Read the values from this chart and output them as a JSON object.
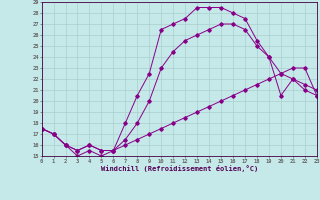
{
  "xlabel": "Windchill (Refroidissement éolien,°C)",
  "xlim": [
    0,
    23
  ],
  "ylim": [
    15,
    29
  ],
  "yticks": [
    15,
    16,
    17,
    18,
    19,
    20,
    21,
    22,
    23,
    24,
    25,
    26,
    27,
    28,
    29
  ],
  "xticks": [
    0,
    1,
    2,
    3,
    4,
    5,
    6,
    7,
    8,
    9,
    10,
    11,
    12,
    13,
    14,
    15,
    16,
    17,
    18,
    19,
    20,
    21,
    22,
    23
  ],
  "background_color": "#c5e8e8",
  "line_color": "#880088",
  "grid_color": "#aacece",
  "line1_x": [
    0,
    1,
    2,
    3,
    4,
    5,
    6,
    7,
    8,
    9,
    10,
    11,
    12,
    13,
    14,
    15,
    16,
    17,
    18,
    19,
    20,
    21,
    22,
    23
  ],
  "line1_y": [
    17.5,
    17.0,
    16.0,
    15.0,
    15.5,
    15.0,
    15.5,
    18.0,
    20.5,
    22.5,
    26.5,
    27.0,
    27.5,
    28.5,
    28.5,
    28.5,
    28.0,
    27.5,
    25.5,
    24.0,
    20.5,
    22.0,
    21.0,
    20.5
  ],
  "line2_x": [
    0,
    1,
    2,
    3,
    4,
    5,
    6,
    7,
    8,
    9,
    10,
    11,
    12,
    13,
    14,
    15,
    16,
    17,
    18,
    19,
    20,
    21,
    22,
    23
  ],
  "line2_y": [
    17.5,
    17.0,
    16.0,
    15.5,
    16.0,
    15.5,
    15.5,
    16.0,
    16.5,
    17.0,
    17.5,
    18.0,
    18.5,
    19.0,
    19.5,
    20.0,
    20.5,
    21.0,
    21.5,
    22.0,
    22.5,
    23.0,
    23.0,
    20.5
  ],
  "line3_x": [
    0,
    1,
    2,
    3,
    4,
    5,
    6,
    7,
    8,
    9,
    10,
    11,
    12,
    13,
    14,
    15,
    16,
    17,
    18,
    19,
    20,
    21,
    22,
    23
  ],
  "line3_y": [
    17.5,
    17.0,
    16.0,
    15.5,
    16.0,
    15.5,
    15.5,
    16.5,
    18.0,
    20.0,
    23.0,
    24.5,
    25.5,
    26.0,
    26.5,
    27.0,
    27.0,
    26.5,
    25.0,
    24.0,
    22.5,
    22.0,
    21.5,
    21.0
  ],
  "tick_fontsize": 4.0,
  "xlabel_fontsize": 5.0,
  "marker_size": 1.8,
  "linewidth": 0.7
}
